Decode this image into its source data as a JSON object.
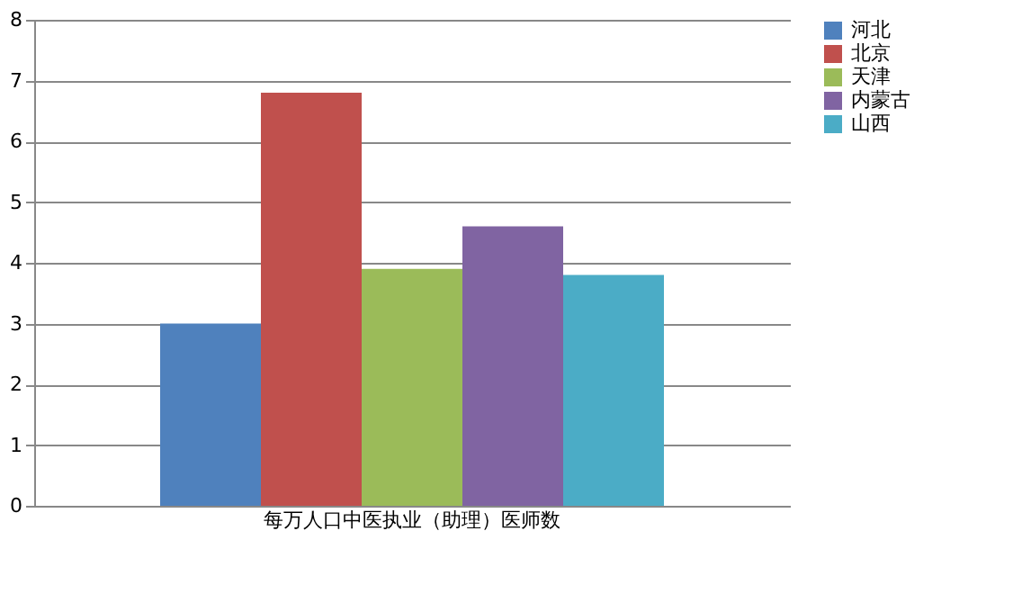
{
  "chart_data": {
    "type": "bar",
    "categories": [
      "每万人口中医执业（助理）医师数"
    ],
    "series": [
      {
        "name": "河北",
        "color": "#4f81bd",
        "values": [
          3.0
        ]
      },
      {
        "name": "北京",
        "color": "#c0504d",
        "values": [
          6.8
        ]
      },
      {
        "name": "天津",
        "color": "#9bbb59",
        "values": [
          3.9
        ]
      },
      {
        "name": "内蒙古",
        "color": "#8064a2",
        "values": [
          4.6
        ]
      },
      {
        "name": "山西",
        "color": "#4bacc6",
        "values": [
          3.8
        ]
      }
    ],
    "ylim": [
      0,
      8
    ],
    "yticks": [
      0,
      1,
      2,
      3,
      4,
      5,
      6,
      7,
      8
    ],
    "grid": "y",
    "legend": "right"
  }
}
